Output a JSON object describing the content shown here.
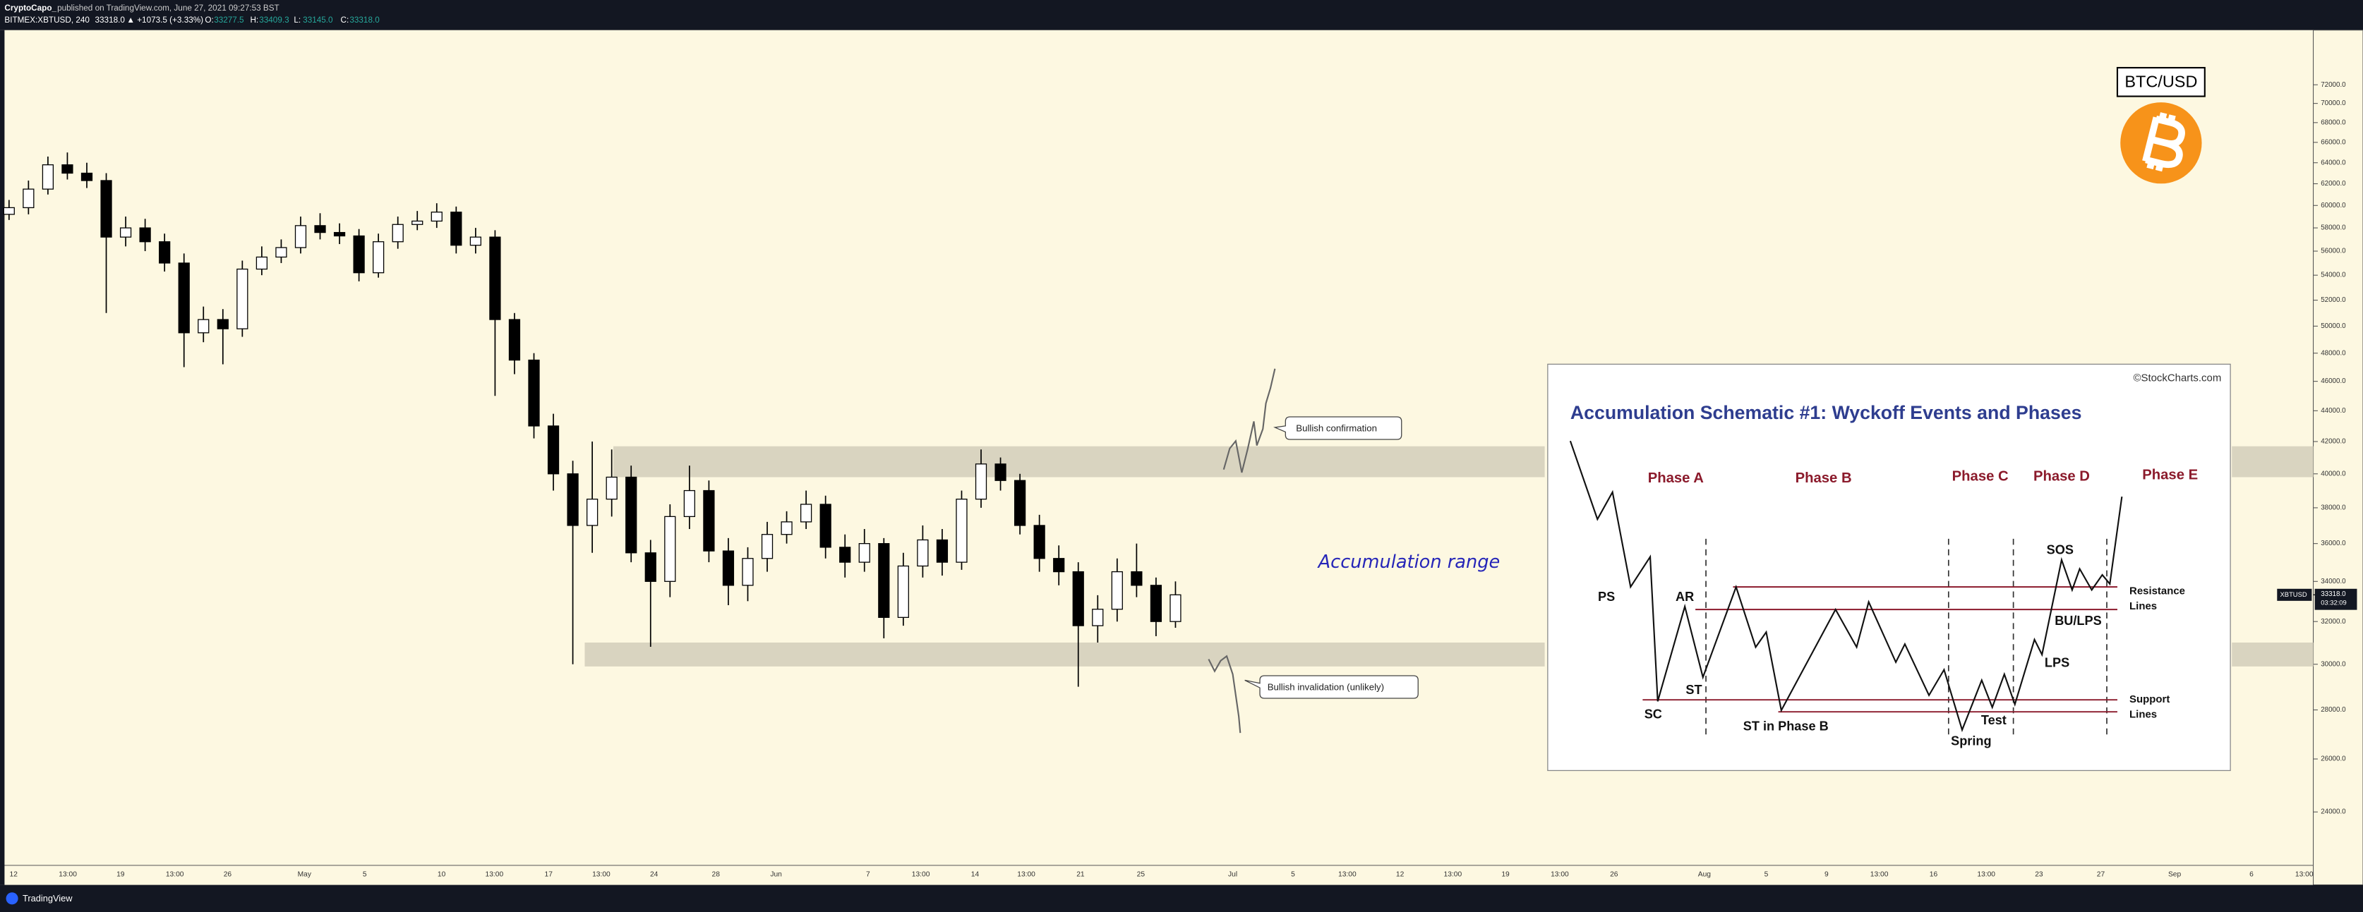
{
  "header": {
    "author": "CryptoCapo_",
    "published": "published on TradingView.com, June 27, 2021 09:27:53 BST",
    "symbol": "BITMEX:XBTUSD, 240",
    "last": "33318.0",
    "change": "▲ +1073.5 (+3.33%)",
    "ohlc": [
      [
        "O:",
        "33277.5"
      ],
      [
        "H:",
        "33409.3"
      ],
      [
        "L:",
        "33145.0"
      ],
      [
        "C:",
        "33318.0"
      ]
    ]
  },
  "footer": {
    "brand": "TradingView"
  },
  "chart_data": {
    "type": "candlestick",
    "log_scale": true,
    "grid": false,
    "ylim": [
      22140,
      78200
    ],
    "yticks": [
      {
        "value": 72000,
        "label": "72000.0"
      },
      {
        "value": 70000,
        "label": "70000.0"
      },
      {
        "value": 68000,
        "label": "68000.0"
      },
      {
        "value": 66000,
        "label": "66000.0"
      },
      {
        "value": 64000,
        "label": "64000.0"
      },
      {
        "value": 62000,
        "label": "62000.0"
      },
      {
        "value": 60000,
        "label": "60000.0"
      },
      {
        "value": 58000,
        "label": "58000.0"
      },
      {
        "value": 56000,
        "label": "56000.0"
      },
      {
        "value": 54000,
        "label": "54000.0"
      },
      {
        "value": 52000,
        "label": "52000.0"
      },
      {
        "value": 50000,
        "label": "50000.0"
      },
      {
        "value": 48000,
        "label": "48000.0"
      },
      {
        "value": 46000,
        "label": "46000.0"
      },
      {
        "value": 44000,
        "label": "44000.0"
      },
      {
        "value": 42000,
        "label": "42000.0"
      },
      {
        "value": 40000,
        "label": "40000.0"
      },
      {
        "value": 38000,
        "label": "38000.0"
      },
      {
        "value": 36000,
        "label": "36000.0"
      },
      {
        "value": 34000,
        "label": "34000.0"
      },
      {
        "value": 32000,
        "label": "32000.0"
      },
      {
        "value": 30000,
        "label": "30000.0"
      },
      {
        "value": 28000,
        "label": "28000.0"
      },
      {
        "value": 26000,
        "label": "26000.0"
      },
      {
        "value": 24000,
        "label": "24000.0"
      }
    ],
    "x_axis_labels": [
      "12",
      "13:00",
      "19",
      "13:00",
      "26",
      "May",
      "5",
      "10",
      "13:00",
      "17",
      "13:00",
      "24",
      "28",
      "Jun",
      "7",
      "13:00",
      "14",
      "13:00",
      "21",
      "25",
      "Jul",
      "5",
      "13:00",
      "12",
      "13:00",
      "19",
      "13:00",
      "26",
      "Aug",
      "5",
      "9",
      "13:00",
      "16",
      "13:00",
      "23",
      "27",
      "Sep",
      "6",
      "13:00"
    ],
    "open": [
      59200,
      59800,
      61500,
      63800,
      63000,
      62300,
      57200,
      58000,
      56800,
      55000,
      49500,
      50500,
      49800,
      54500,
      55500,
      56300,
      58200,
      57600,
      57300,
      54200,
      56800,
      58300,
      58600,
      59400,
      56500,
      57200,
      50500,
      47500,
      43000,
      40000,
      37000,
      38500,
      39800,
      35500,
      34000,
      37500,
      39000,
      35600,
      33800,
      35200,
      36500,
      37200,
      38200,
      35800,
      35000,
      36000,
      32200,
      34800,
      36200,
      35000,
      38500,
      40600,
      39600,
      37000,
      35200,
      34500,
      31800,
      32600,
      34500,
      33800,
      32000
    ],
    "high": [
      60500,
      62300,
      64600,
      65000,
      64000,
      63000,
      59000,
      58800,
      57500,
      55800,
      51500,
      51300,
      55200,
      56400,
      57000,
      59000,
      59300,
      58400,
      57900,
      57500,
      59000,
      59500,
      60200,
      59900,
      58000,
      57800,
      51000,
      48000,
      43800,
      40800,
      42000,
      41500,
      40500,
      36200,
      38200,
      40500,
      39600,
      36300,
      35800,
      37200,
      37800,
      39000,
      38700,
      36500,
      36800,
      36300,
      35500,
      37000,
      36800,
      39000,
      41500,
      41000,
      40000,
      37600,
      35900,
      35000,
      33300,
      35200,
      36000,
      34200,
      34000
    ],
    "low": [
      58700,
      59200,
      61000,
      62400,
      61600,
      51000,
      56400,
      56000,
      54300,
      47000,
      48800,
      47200,
      49200,
      54000,
      55000,
      55800,
      57000,
      56600,
      53500,
      53800,
      56200,
      57800,
      58000,
      55800,
      55800,
      45000,
      46500,
      42200,
      39000,
      30000,
      35500,
      37500,
      35000,
      30800,
      33200,
      36800,
      35000,
      32800,
      33000,
      34500,
      36000,
      36800,
      35200,
      34200,
      34500,
      31200,
      31800,
      34200,
      34300,
      34600,
      38000,
      39000,
      36500,
      34500,
      33800,
      29000,
      31000,
      32000,
      33200,
      31300,
      31700
    ],
    "close": [
      59800,
      61500,
      63800,
      63000,
      62300,
      57200,
      58000,
      56800,
      55000,
      49500,
      50500,
      49800,
      54500,
      55500,
      56300,
      58200,
      57600,
      57300,
      54200,
      56800,
      58300,
      58600,
      59400,
      56500,
      57200,
      50500,
      47500,
      43000,
      40000,
      37000,
      38500,
      39800,
      35500,
      34000,
      37500,
      39000,
      35600,
      33800,
      35200,
      36500,
      37200,
      38200,
      35800,
      35000,
      36000,
      32200,
      34800,
      36200,
      35000,
      38500,
      40600,
      39600,
      37000,
      35200,
      34500,
      31800,
      32600,
      34500,
      33800,
      32000,
      33318
    ],
    "zones": [
      {
        "top": 41700,
        "bottom": 39800,
        "color": "#d9d4c0"
      },
      {
        "top": 31000,
        "bottom": 29900,
        "color": "#d9d4c0"
      }
    ],
    "last_price": {
      "value": 33318,
      "label": "33318.0"
    },
    "countdown": "03:32:09",
    "symbol_tag": "XBTUSD",
    "annotations": [
      "Bullish confirmation",
      "Bullish invalidation (unlikely)",
      "Accumulation range"
    ],
    "badge": "BTC/USD"
  },
  "inset": {
    "credit": "©StockCharts.com",
    "title": "Accumulation Schematic #1: Wyckoff Events and Phases",
    "phases": [
      "Phase A",
      "Phase B",
      "Phase C",
      "Phase D",
      "Phase E"
    ],
    "events": [
      "PS",
      "AR",
      "ST",
      "SC",
      "ST in Phase B",
      "Spring",
      "Test",
      "LPS",
      "BU/LPS",
      "SOS"
    ],
    "line_labels": [
      "Resistance",
      "Lines",
      "Support",
      "Lines"
    ]
  }
}
